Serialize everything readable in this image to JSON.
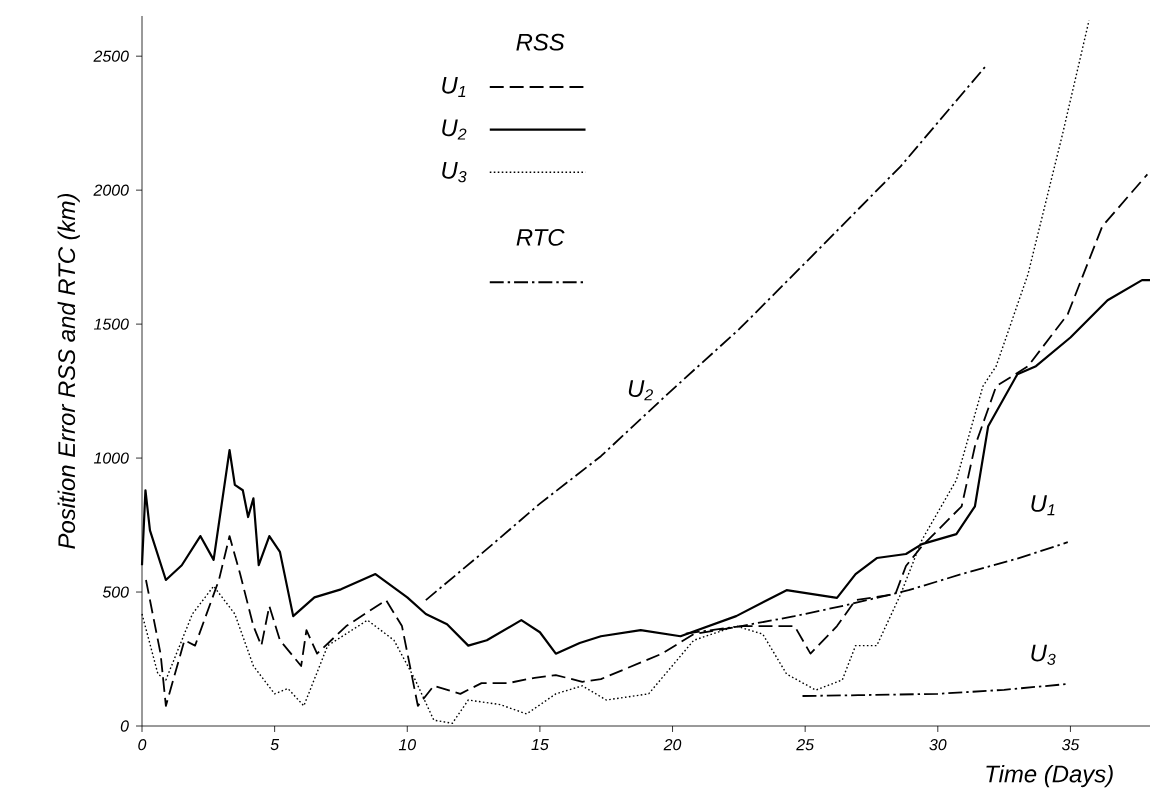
{
  "chart_data": {
    "type": "line",
    "xlabel": "Time (Days)",
    "ylabel": "Position Error RSS and RTC (km)",
    "legend_title": "RSS",
    "annotations": [
      "RTC"
    ],
    "xlim": [
      0,
      38
    ],
    "ylim": [
      0,
      2650
    ],
    "xticks": [
      0,
      5,
      10,
      15,
      20,
      25,
      30,
      35
    ],
    "yticks": [
      0,
      500,
      1000,
      1500,
      2000,
      2500
    ],
    "grid": false,
    "legend": "top left",
    "marker": "none",
    "series": [
      {
        "name": "U$_{1}$",
        "color": "#000000",
        "line_style": "dashed",
        "x": [
          0.15,
          0.7,
          0.9,
          1.6,
          2.0,
          2.9,
          3.3,
          3.7,
          4.2,
          4.5,
          4.8,
          5.2,
          6.0,
          6.2,
          6.6,
          7.7,
          9.2,
          9.8,
          10.4,
          11,
          12,
          12.8,
          13.8,
          14.8,
          15.6,
          16.6,
          17.3,
          19.6,
          20.8,
          22.6,
          24.6,
          25.2,
          26.2,
          26.9,
          28.4,
          28.8,
          29.4,
          30.9,
          31.4,
          32.2,
          33.4,
          34.9,
          36.2,
          37.9
        ],
        "values": [
          545,
          270,
          75,
          320,
          300,
          545,
          709,
          567,
          373,
          300,
          448,
          320,
          224,
          358,
          270,
          373,
          470,
          373,
          75,
          150,
          120,
          160,
          160,
          180,
          190,
          165,
          175,
          270,
          343,
          373,
          373,
          270,
          373,
          470,
          492,
          597,
          671,
          820,
          1044,
          1268,
          1343,
          1537,
          1865,
          2059
        ]
      },
      {
        "name": "U$_{2}$",
        "color": "#000000",
        "line_style": "solid",
        "x": [
          0,
          0.13,
          0.3,
          0.9,
          1.5,
          2.2,
          2.7,
          3.3,
          3.5,
          3.8,
          4.0,
          4.2,
          4.4,
          4.8,
          5.2,
          5.7,
          6.5,
          7.5,
          8.8,
          10,
          10.7,
          11.5,
          12.3,
          13,
          14.3,
          15,
          15.6,
          16.5,
          17.3,
          18.8,
          20.3,
          22.4,
          24.3,
          26.2,
          26.9,
          27.7,
          28.8,
          29.4,
          30.7,
          31.4,
          31.9,
          33,
          33.7,
          35,
          36.4,
          37.7,
          38
        ],
        "values": [
          600,
          880,
          730,
          545,
          600,
          709,
          620,
          1030,
          900,
          880,
          780,
          850,
          600,
          709,
          650,
          410,
          480,
          510,
          567,
          480,
          418,
          380,
          300,
          320,
          395,
          350,
          270,
          310,
          335,
          358,
          335,
          410,
          507,
          478,
          567,
          627,
          642,
          679,
          716,
          820,
          1119,
          1313,
          1343,
          1450,
          1589,
          1664,
          1664
        ]
      },
      {
        "name": "U$_{3}$",
        "color": "#000000",
        "line_style": "dotted",
        "x": [
          0,
          0.6,
          0.9,
          1.9,
          2.7,
          3.5,
          4.2,
          5,
          5.5,
          6.1,
          7.0,
          8.5,
          9.5,
          10.3,
          11,
          11.7,
          12.3,
          13.5,
          14.5,
          15.6,
          16.6,
          17.5,
          19.1,
          20.8,
          22.4,
          23.4,
          24.3,
          25.4,
          26.4,
          26.9,
          27.7,
          28.6,
          29.4,
          30.7,
          31.7,
          32.2,
          33.4,
          34.7,
          35.7
        ],
        "values": [
          418,
          194,
          172,
          418,
          522,
          418,
          224,
          120,
          140,
          75,
          300,
          395,
          320,
          172,
          22,
          10,
          97,
          80,
          45,
          120,
          150,
          97,
          120,
          320,
          373,
          343,
          194,
          134,
          172,
          300,
          300,
          492,
          694,
          918,
          1268,
          1343,
          1686,
          2208,
          2633
        ]
      },
      {
        "name": "U$_{2}$",
        "color": "#000000",
        "line_style": "dashdot",
        "x": [
          10.7,
          13,
          15,
          17.3,
          19.8,
          22.5,
          25.1,
          28.6,
          31.8
        ],
        "values": [
          470,
          660,
          830,
          1007,
          1238,
          1480,
          1738,
          2089,
          2462
        ]
      },
      {
        "name": "U$_{1}$",
        "color": "#000000",
        "line_style": "dashdot",
        "x": [
          20.5,
          22.6,
          24.6,
          26.5,
          28.9,
          31,
          33,
          34.9
        ],
        "values": [
          345,
          373,
          410,
          450,
          507,
          570,
          625,
          686
        ]
      },
      {
        "name": "U$_{3}$",
        "color": "#000000",
        "line_style": "dashdot",
        "x": [
          24.9,
          27,
          30,
          32.5,
          34.9
        ],
        "values": [
          112,
          115,
          120,
          135,
          157
        ]
      }
    ]
  }
}
